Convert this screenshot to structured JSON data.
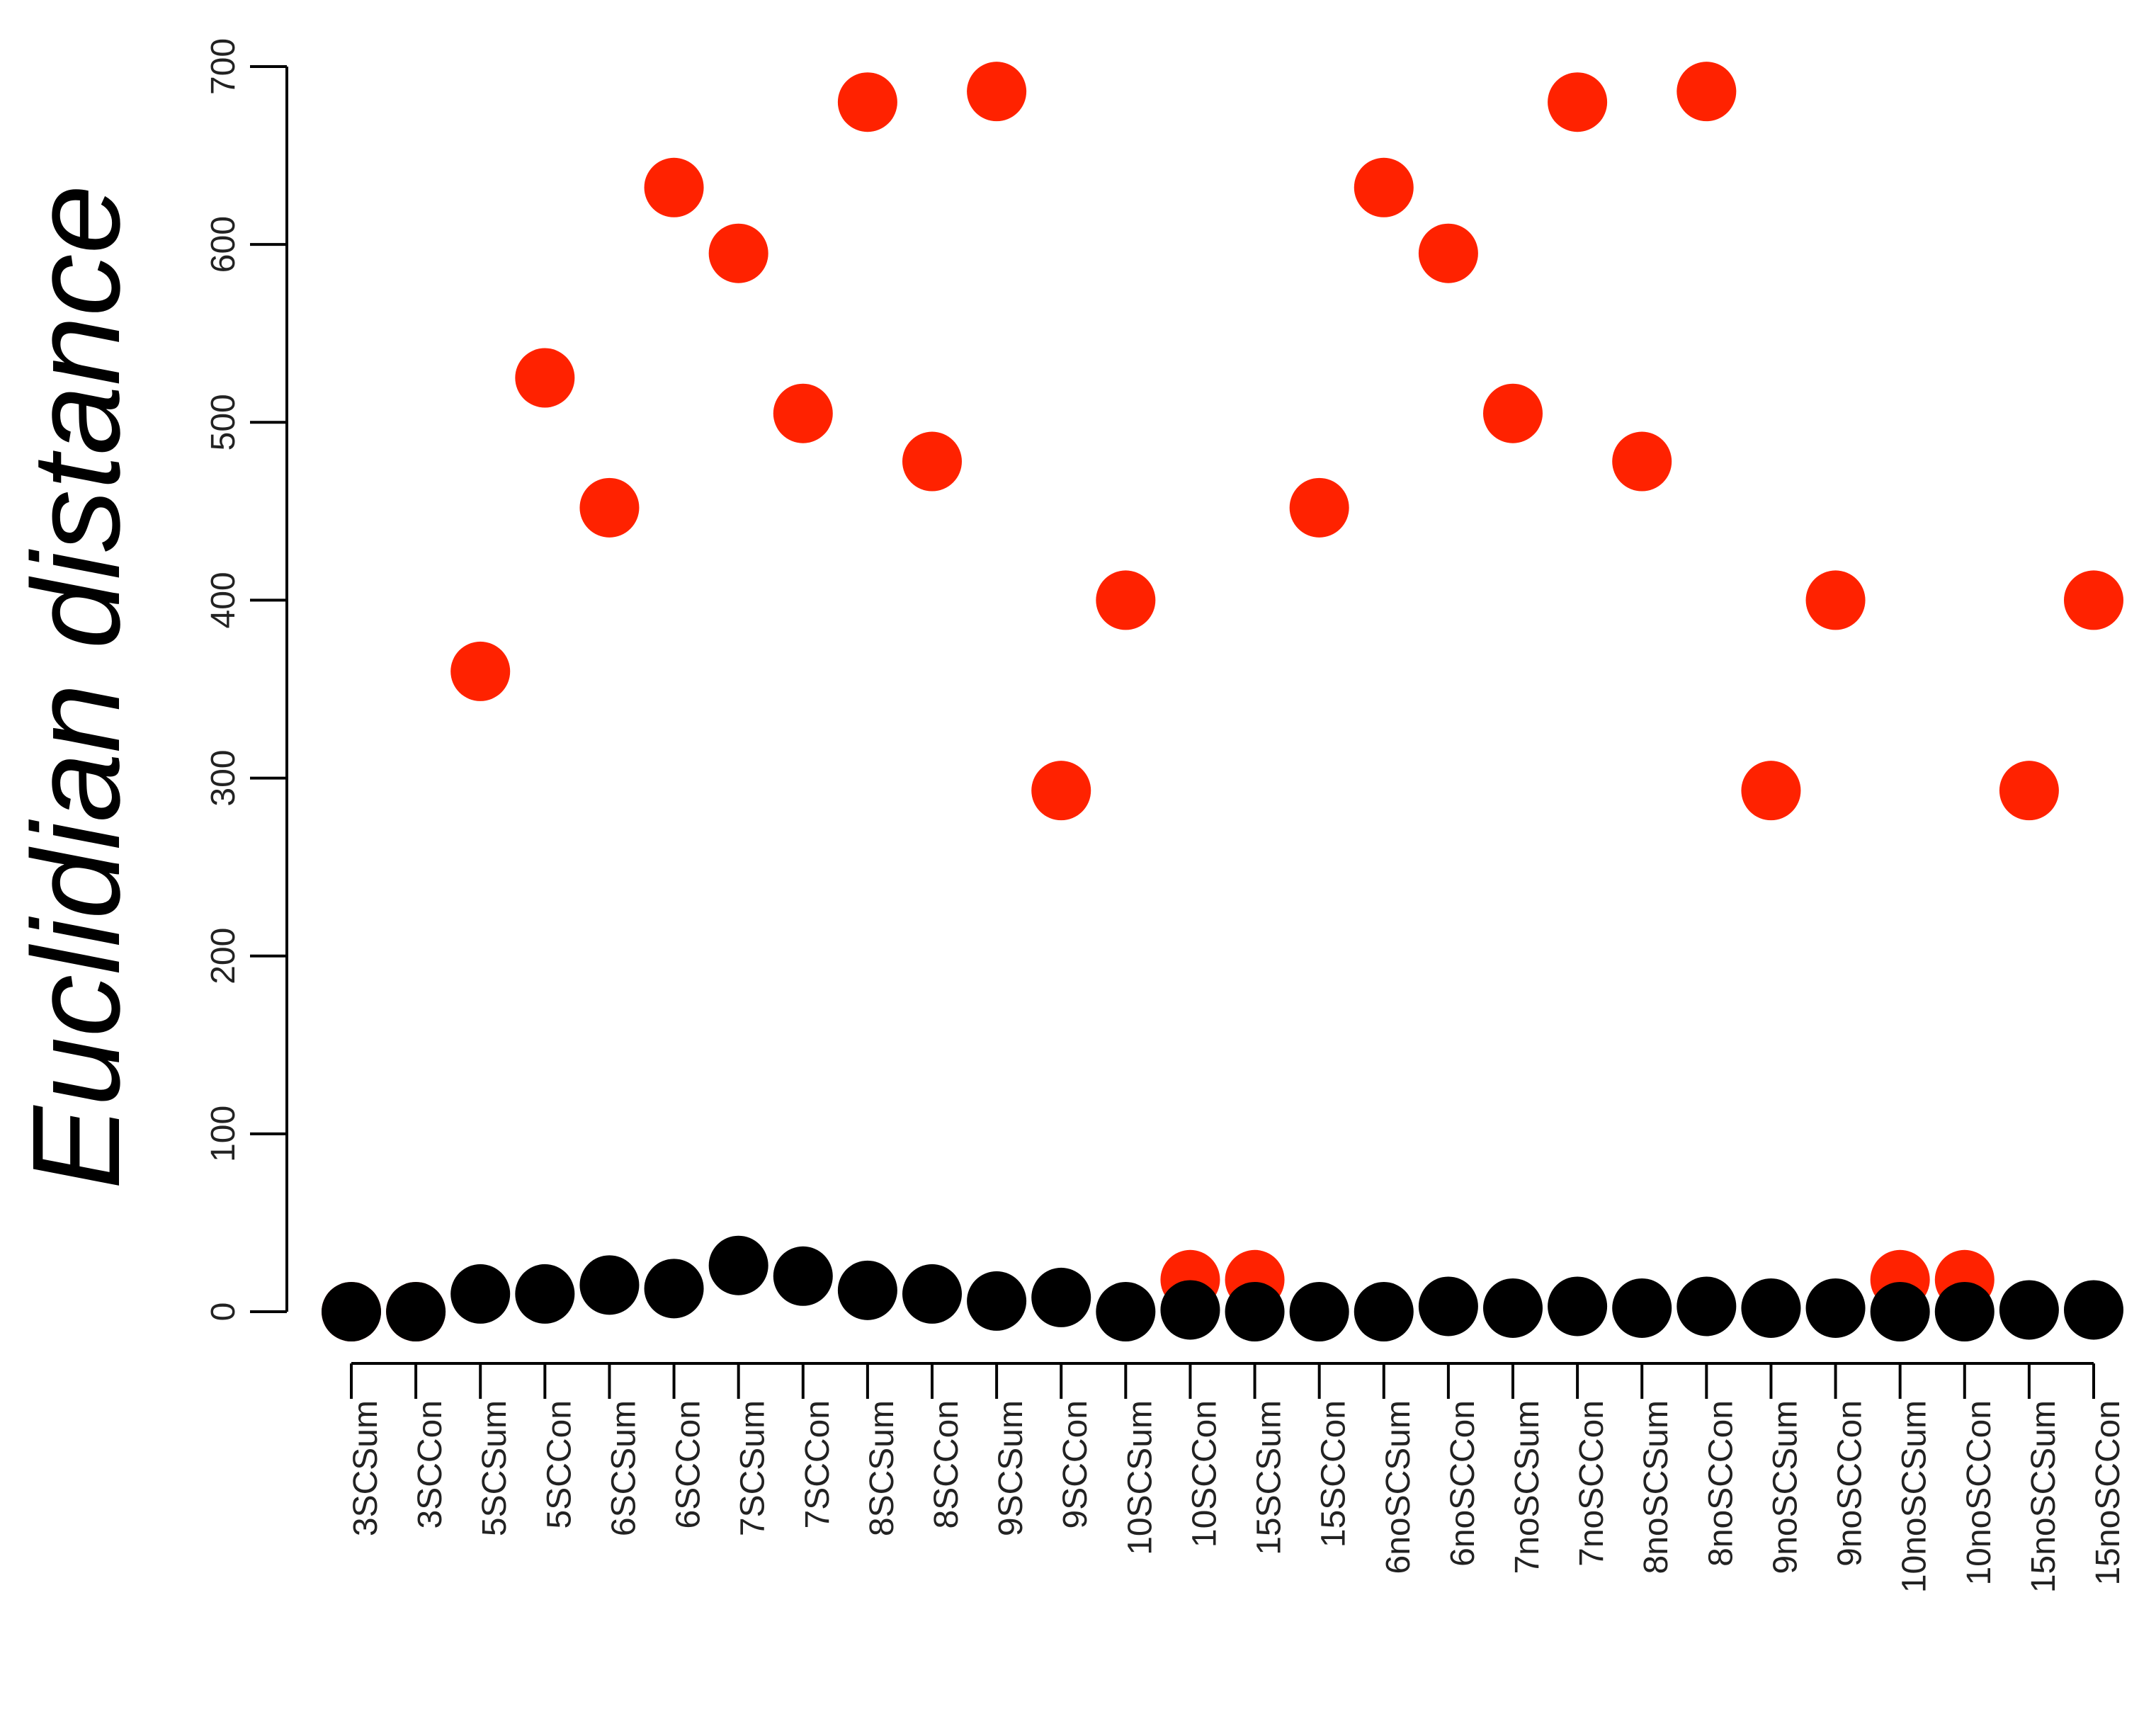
{
  "chart_data": {
    "type": "scatter",
    "ylabel": "Euclidian distance",
    "xlabel": "",
    "title": "",
    "ylim": [
      0,
      700
    ],
    "yticks": [
      0,
      100,
      200,
      300,
      400,
      500,
      600,
      700
    ],
    "categories": [
      "3SCSum",
      "3SCCon",
      "5SCSum",
      "5SCCon",
      "6SCSum",
      "6SCCon",
      "7SCSum",
      "7SCCon",
      "8SCSum",
      "8SCCon",
      "9SCSum",
      "9SCCon",
      "10SCSum",
      "10SCCon",
      "15SCSum",
      "15SCCon",
      "6noSCSum",
      "6noSCCon",
      "7noSCSum",
      "7noSCCon",
      "8noSCSum",
      "8noSCCon",
      "9noSCSum",
      "9noSCCon",
      "10noSCSum",
      "10noSCCon",
      "15noSCSum",
      "15noSCCon"
    ],
    "series": [
      {
        "color": "#ff2200",
        "values": [
          0,
          0,
          360,
          525,
          452,
          632,
          595,
          505,
          680,
          478,
          686,
          293,
          400,
          18,
          18,
          452,
          632,
          595,
          505,
          680,
          478,
          686,
          293,
          400,
          18,
          18,
          293,
          400
        ]
      },
      {
        "color": "#000000",
        "values": [
          0,
          0,
          10,
          10,
          15,
          13,
          26,
          20,
          12,
          10,
          6,
          8,
          0,
          1,
          0,
          0,
          0,
          3,
          2,
          3,
          2,
          3,
          2,
          2,
          0,
          0,
          1,
          1
        ]
      }
    ],
    "grid": false,
    "legend": "none"
  }
}
